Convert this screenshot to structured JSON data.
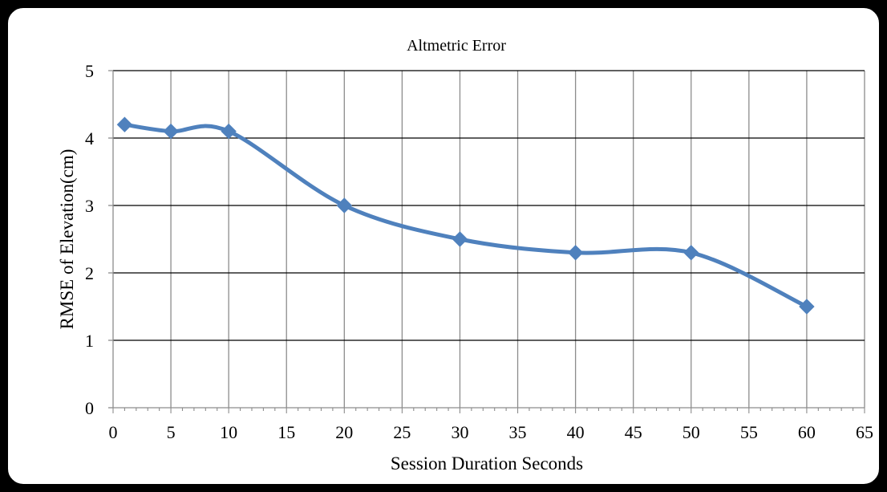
{
  "chart_data": {
    "type": "line",
    "title": "Altmetric Error",
    "xlabel": "Session Duration Seconds",
    "ylabel": "RMSE of Elevation(cm)",
    "xlim": [
      0,
      65
    ],
    "ylim": [
      0,
      5
    ],
    "x_ticks": [
      "0",
      "5",
      "10",
      "15",
      "20",
      "25",
      "30",
      "35",
      "40",
      "45",
      "50",
      "55",
      "60",
      "65"
    ],
    "y_ticks": [
      "0",
      "1",
      "2",
      "3",
      "4",
      "5"
    ],
    "grid": true,
    "legend": "none",
    "smooth": true,
    "marker": "diamond",
    "series": [
      {
        "color": "#4F81BD",
        "x": [
          1,
          5,
          10,
          20,
          30,
          40,
          50,
          60
        ],
        "y": [
          4.2,
          4.1,
          4.1,
          3.0,
          2.5,
          2.3,
          2.3,
          1.5
        ]
      }
    ]
  },
  "colors": {
    "frame_background": "#000000",
    "plot_background": "#ffffff",
    "vertical_grid": "#8c8c8c",
    "horizontal_grid": "#000000",
    "axis": "#8c8c8c"
  }
}
